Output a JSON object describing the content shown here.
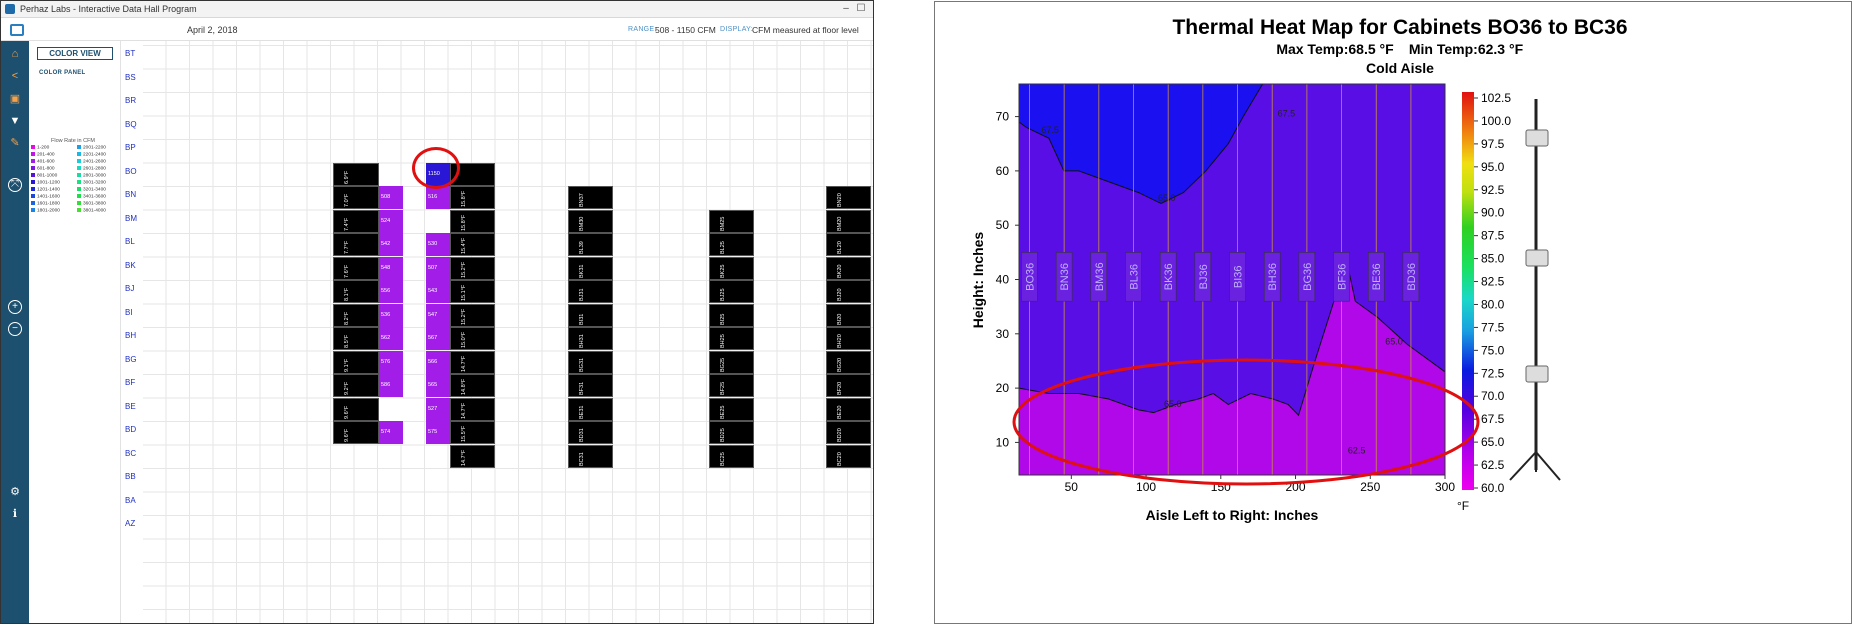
{
  "app": {
    "title": "Perhaz Labs - Interactive Data Hall Program",
    "date": "April 2, 2018",
    "range_label": "RANGE:",
    "range_value": "508 - 1150 CFM",
    "display_label": "DISPLAY:",
    "display_value": "CFM measured at floor level",
    "color_view": "COLOR VIEW",
    "color_panel": "COLOR PANEL",
    "flow_rate_title": "Flow Rate in CFM",
    "legend_left": [
      {
        "label": "1-200",
        "color": "#e60ce6"
      },
      {
        "label": "201-400",
        "color": "#c214e6"
      },
      {
        "label": "401-600",
        "color": "#a31de8"
      },
      {
        "label": "601-800",
        "color": "#7d16e0"
      },
      {
        "label": "801-1000",
        "color": "#5512d8"
      },
      {
        "label": "1001-1200",
        "color": "#2a17d6"
      },
      {
        "label": "1201-1400",
        "color": "#1e2ad8"
      },
      {
        "label": "1401-1600",
        "color": "#1a47dc"
      },
      {
        "label": "1601-1800",
        "color": "#1a66e0"
      },
      {
        "label": "1801-2000",
        "color": "#1a84e4"
      }
    ],
    "legend_right": [
      {
        "label": "2001-2200",
        "color": "#1aa0e8"
      },
      {
        "label": "2201-2400",
        "color": "#18b8e8"
      },
      {
        "label": "2401-2600",
        "color": "#18ccdc"
      },
      {
        "label": "2601-2800",
        "color": "#18d8c4"
      },
      {
        "label": "2801-3000",
        "color": "#18dca4"
      },
      {
        "label": "3001-3200",
        "color": "#18e084"
      },
      {
        "label": "3201-3400",
        "color": "#18e064"
      },
      {
        "label": "3401-3600",
        "color": "#1ce048"
      },
      {
        "label": "3601-3800",
        "color": "#2ee038"
      },
      {
        "label": "3801-4000",
        "color": "#48e030"
      }
    ],
    "rows": [
      "BT",
      "BS",
      "BR",
      "BQ",
      "BP",
      "BO",
      "BN",
      "BM",
      "BL",
      "BK",
      "BJ",
      "BI",
      "BH",
      "BG",
      "BF",
      "BE",
      "BD",
      "BC",
      "BB",
      "BA",
      "AZ"
    ],
    "col_a": [
      "6.9°F",
      "7.0°F",
      "7.4°F",
      "7.7°F",
      "7.6°F",
      "8.1°F",
      "8.2°F",
      "8.5°F",
      "9.1°F",
      "9.2°F",
      "9.6°F",
      "9.6°F"
    ],
    "col_b": [
      "508",
      "524",
      "542",
      "548",
      "556",
      "536",
      "562",
      "576",
      "586",
      "",
      "574"
    ],
    "col_c": [
      "1150",
      "516",
      "",
      "530",
      "507",
      "543",
      "547",
      "567",
      "566",
      "565",
      "527",
      "575"
    ],
    "col_d": [
      "",
      "15.8°F",
      "15.8°F",
      "15.4°F",
      "15.2°F",
      "15.1°F",
      "15.2°F",
      "15.0°F",
      "14.7°F",
      "14.8°F",
      "14.7°F",
      "15.5°F",
      "14.7°F"
    ],
    "col_e": [
      "BN37",
      "BM30",
      "BL39",
      "BK31",
      "BJ31",
      "BI31",
      "BH31",
      "BG31",
      "BF31",
      "BE31",
      "BD31",
      "BC31"
    ],
    "col_f": [
      "BM25",
      "BL25",
      "BK25",
      "BJ25",
      "BI25",
      "BH25",
      "BG25",
      "BF25",
      "BE25",
      "BD25",
      "BC25"
    ],
    "col_g": [
      "BN20",
      "BM20",
      "BL20",
      "BK20",
      "BJ20",
      "BI20",
      "BH20",
      "BG20",
      "BF20",
      "BE20",
      "BD20",
      "BC20"
    ]
  },
  "chart_data": {
    "type": "heatmap",
    "title": "Thermal Heat Map for Cabinets BO36 to BC36",
    "subtitle_max": "Max Temp:68.5 °F",
    "subtitle_min": "Min Temp:62.3 °F",
    "subtitle_aisle": "Cold Aisle",
    "xlabel": "Aisle Left to Right: Inches",
    "ylabel": "Height: Inches",
    "xticks": [
      50,
      100,
      150,
      200,
      250,
      300
    ],
    "yticks": [
      10,
      20,
      30,
      40,
      50,
      60,
      70
    ],
    "xlim": [
      15,
      300
    ],
    "ylim": [
      4,
      76
    ],
    "cabinets": [
      "BO36",
      "BN36",
      "BM36",
      "BL36",
      "BK36",
      "BJ36",
      "BI36",
      "BH36",
      "BG36",
      "BF36",
      "BE36",
      "BD36"
    ],
    "colorbar": {
      "ticks": [
        102.5,
        100.0,
        97.5,
        95.0,
        92.5,
        90.0,
        87.5,
        85.0,
        82.5,
        80.0,
        77.5,
        75.0,
        72.5,
        70.0,
        67.5,
        65.0,
        62.5,
        60.0
      ],
      "unit": "°F"
    },
    "contour_labels": [
      "67.5",
      "65.0",
      "67.5",
      "62.5",
      "65.0",
      "65.0"
    ]
  }
}
